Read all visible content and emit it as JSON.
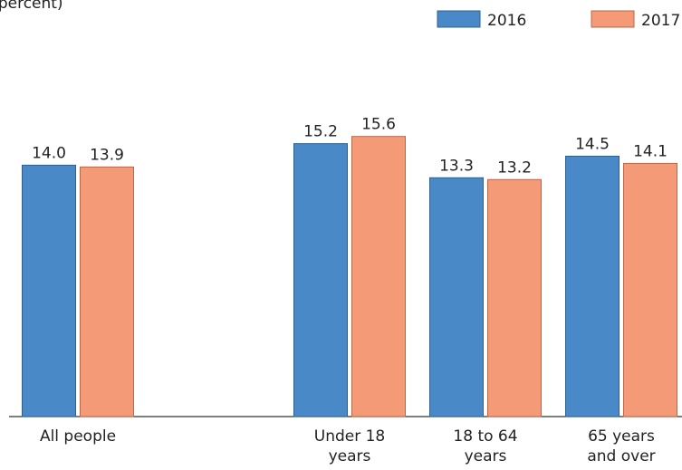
{
  "chart_data": {
    "type": "bar",
    "subtitle": "(In percent)",
    "categories": [
      "All people",
      null,
      "Under 18 years",
      "18 to 64 years",
      "65 years and over"
    ],
    "series": [
      {
        "name": "2016",
        "color": "#4a89c8",
        "edge": "#2f5f8f",
        "values": [
          14.0,
          null,
          15.2,
          13.3,
          14.5
        ],
        "value_labels": [
          "14.0",
          null,
          "15.2",
          "13.3",
          "14.5"
        ]
      },
      {
        "name": "2017",
        "color": "#f59a77",
        "edge": "#b9674a",
        "values": [
          13.9,
          null,
          15.6,
          13.2,
          14.1
        ],
        "value_labels": [
          "13.9",
          null,
          "15.6",
          "13.2",
          "14.1"
        ]
      }
    ],
    "ylim": [
      0,
      23.2
    ]
  }
}
